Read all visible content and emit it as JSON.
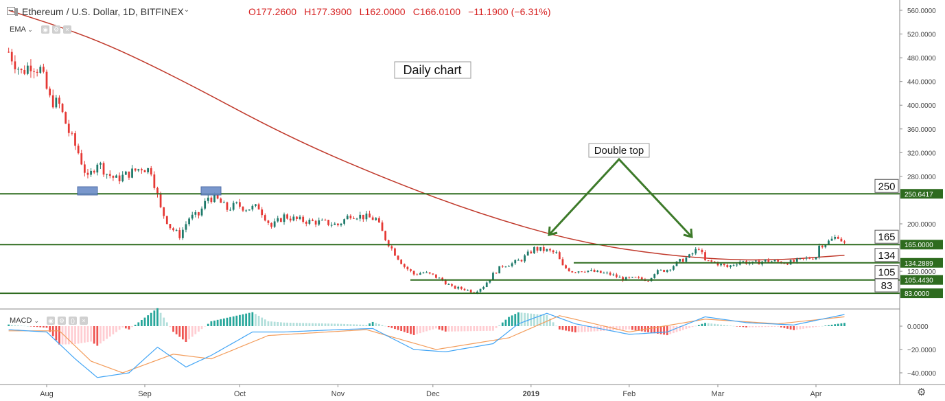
{
  "header": {
    "title": "Ethereum / U.S. Dollar, 1D, BITFINEX",
    "open": "O177.2600",
    "high": "H177.3900",
    "low": "L162.0000",
    "close": "C166.0100",
    "change": "−11.1900 (−6.31%)"
  },
  "indicators": {
    "ema_label": "EMA",
    "macd_label": "MACD"
  },
  "colors": {
    "up": "#1e7a6a",
    "down": "#e53935",
    "ema": "#c0392b",
    "levels": "#2e6b1f",
    "macd_line": "#42a5f5",
    "signal_line": "#f39c5a",
    "hist_pos_strong": "#26a69a",
    "hist_pos_weak": "#b2dfdb",
    "hist_neg_strong": "#ef5350",
    "hist_neg_weak": "#ffcdd2"
  },
  "chart_data": {
    "type": "candlestick",
    "title": "",
    "xlabel": "",
    "ylabel": "",
    "ylim": [
      75,
      568
    ],
    "x_ticks": [
      "Aug",
      "Sep",
      "Oct",
      "Nov",
      "Dec",
      "2019",
      "Feb",
      "Mar",
      "Apr"
    ],
    "y_ticks": [
      "560.0000",
      "520.0000",
      "480.0000",
      "440.0000",
      "400.0000",
      "360.0000",
      "320.0000",
      "280.0000",
      "200.0000",
      "120.0000"
    ],
    "grid": false,
    "annotations": {
      "daily_chart": "Daily chart",
      "double_top": "Double top"
    },
    "levels": [
      {
        "label": "250",
        "price_label": "250.6417",
        "value": 250.64
      },
      {
        "label": "165",
        "price_label": "165.0000",
        "value": 165.0
      },
      {
        "label": "134",
        "price_label": "134.2889",
        "value": 134.29
      },
      {
        "label": "105",
        "price_label": "105.4430",
        "value": 105.44
      },
      {
        "label": "83",
        "price_label": "83.0000",
        "value": 83.0
      }
    ],
    "close_series": [
      {
        "date": "2018-07-20",
        "close": 490
      },
      {
        "date": "2018-07-24",
        "close": 455
      },
      {
        "date": "2018-07-27",
        "close": 470
      },
      {
        "date": "2018-07-30",
        "close": 460
      },
      {
        "date": "2018-08-02",
        "close": 410
      },
      {
        "date": "2018-08-05",
        "close": 400
      },
      {
        "date": "2018-08-08",
        "close": 355
      },
      {
        "date": "2018-08-11",
        "close": 320
      },
      {
        "date": "2018-08-14",
        "close": 275
      },
      {
        "date": "2018-08-17",
        "close": 305
      },
      {
        "date": "2018-08-20",
        "close": 285
      },
      {
        "date": "2018-08-23",
        "close": 275
      },
      {
        "date": "2018-08-27",
        "close": 285
      },
      {
        "date": "2018-08-31",
        "close": 295
      },
      {
        "date": "2018-09-03",
        "close": 290
      },
      {
        "date": "2018-09-06",
        "close": 225
      },
      {
        "date": "2018-09-09",
        "close": 195
      },
      {
        "date": "2018-09-12",
        "close": 180
      },
      {
        "date": "2018-09-15",
        "close": 210
      },
      {
        "date": "2018-09-18",
        "close": 215
      },
      {
        "date": "2018-09-21",
        "close": 245
      },
      {
        "date": "2018-09-24",
        "close": 240
      },
      {
        "date": "2018-09-27",
        "close": 225
      },
      {
        "date": "2018-09-30",
        "close": 232
      },
      {
        "date": "2018-10-03",
        "close": 226
      },
      {
        "date": "2018-10-07",
        "close": 228
      },
      {
        "date": "2018-10-11",
        "close": 195
      },
      {
        "date": "2018-10-15",
        "close": 213
      },
      {
        "date": "2018-10-19",
        "close": 207
      },
      {
        "date": "2018-10-23",
        "close": 204
      },
      {
        "date": "2018-10-28",
        "close": 202
      },
      {
        "date": "2018-11-01",
        "close": 198
      },
      {
        "date": "2018-11-05",
        "close": 216
      },
      {
        "date": "2018-11-09",
        "close": 212
      },
      {
        "date": "2018-11-13",
        "close": 208
      },
      {
        "date": "2018-11-16",
        "close": 175
      },
      {
        "date": "2018-11-19",
        "close": 150
      },
      {
        "date": "2018-11-22",
        "close": 128
      },
      {
        "date": "2018-11-25",
        "close": 115
      },
      {
        "date": "2018-11-28",
        "close": 118
      },
      {
        "date": "2018-12-01",
        "close": 113
      },
      {
        "date": "2018-12-04",
        "close": 105
      },
      {
        "date": "2018-12-07",
        "close": 93
      },
      {
        "date": "2018-12-11",
        "close": 90
      },
      {
        "date": "2018-12-14",
        "close": 85
      },
      {
        "date": "2018-12-17",
        "close": 95
      },
      {
        "date": "2018-12-20",
        "close": 115
      },
      {
        "date": "2018-12-23",
        "close": 130
      },
      {
        "date": "2018-12-26",
        "close": 133
      },
      {
        "date": "2018-12-29",
        "close": 140
      },
      {
        "date": "2019-01-02",
        "close": 158
      },
      {
        "date": "2019-01-06",
        "close": 155
      },
      {
        "date": "2019-01-09",
        "close": 150
      },
      {
        "date": "2019-01-11",
        "close": 128
      },
      {
        "date": "2019-01-14",
        "close": 120
      },
      {
        "date": "2019-01-18",
        "close": 122
      },
      {
        "date": "2019-01-22",
        "close": 118
      },
      {
        "date": "2019-01-26",
        "close": 115
      },
      {
        "date": "2019-01-30",
        "close": 107
      },
      {
        "date": "2019-02-03",
        "close": 108
      },
      {
        "date": "2019-02-07",
        "close": 106
      },
      {
        "date": "2019-02-09",
        "close": 118
      },
      {
        "date": "2019-02-13",
        "close": 123
      },
      {
        "date": "2019-02-17",
        "close": 137
      },
      {
        "date": "2019-02-20",
        "close": 145
      },
      {
        "date": "2019-02-23",
        "close": 160
      },
      {
        "date": "2019-02-25",
        "close": 137
      },
      {
        "date": "2019-02-28",
        "close": 135
      },
      {
        "date": "2019-03-04",
        "close": 127
      },
      {
        "date": "2019-03-08",
        "close": 137
      },
      {
        "date": "2019-03-12",
        "close": 133
      },
      {
        "date": "2019-03-16",
        "close": 138
      },
      {
        "date": "2019-03-20",
        "close": 136
      },
      {
        "date": "2019-03-24",
        "close": 135
      },
      {
        "date": "2019-03-28",
        "close": 140
      },
      {
        "date": "2019-04-01",
        "close": 145
      },
      {
        "date": "2019-04-02",
        "close": 163
      },
      {
        "date": "2019-04-05",
        "close": 170
      },
      {
        "date": "2019-04-08",
        "close": 180
      },
      {
        "date": "2019-04-10",
        "close": 166
      }
    ],
    "ema": [
      {
        "date": "2018-07-20",
        "value": 560
      },
      {
        "date": "2018-08-15",
        "value": 515
      },
      {
        "date": "2018-09-10",
        "value": 450
      },
      {
        "date": "2018-10-15",
        "value": 350
      },
      {
        "date": "2018-11-15",
        "value": 278
      },
      {
        "date": "2018-12-15",
        "value": 218
      },
      {
        "date": "2019-01-15",
        "value": 170
      },
      {
        "date": "2019-02-15",
        "value": 145
      },
      {
        "date": "2019-03-15",
        "value": 137
      },
      {
        "date": "2019-04-10",
        "value": 147
      }
    ],
    "macd": {
      "y_ticks": [
        "0.0000",
        "−20.0000",
        "−40.0000"
      ],
      "ylim": [
        -48,
        14
      ],
      "macd_line": [
        {
          "date": "2018-07-20",
          "value": -3
        },
        {
          "date": "2018-08-01",
          "value": -5
        },
        {
          "date": "2018-08-10",
          "value": -28
        },
        {
          "date": "2018-08-17",
          "value": -44
        },
        {
          "date": "2018-08-27",
          "value": -40
        },
        {
          "date": "2018-09-05",
          "value": -18
        },
        {
          "date": "2018-09-14",
          "value": -35
        },
        {
          "date": "2018-09-22",
          "value": -25
        },
        {
          "date": "2018-10-05",
          "value": -5
        },
        {
          "date": "2018-10-15",
          "value": -5
        },
        {
          "date": "2018-11-01",
          "value": -3
        },
        {
          "date": "2018-11-12",
          "value": -2
        },
        {
          "date": "2018-11-25",
          "value": -20
        },
        {
          "date": "2018-12-05",
          "value": -22
        },
        {
          "date": "2018-12-20",
          "value": -15
        },
        {
          "date": "2018-12-28",
          "value": 2
        },
        {
          "date": "2019-01-06",
          "value": 11
        },
        {
          "date": "2019-01-15",
          "value": 2
        },
        {
          "date": "2019-02-01",
          "value": -7
        },
        {
          "date": "2019-02-13",
          "value": -5
        },
        {
          "date": "2019-02-25",
          "value": 8
        },
        {
          "date": "2019-03-10",
          "value": 3
        },
        {
          "date": "2019-03-25",
          "value": 1
        },
        {
          "date": "2019-04-10",
          "value": 10
        }
      ],
      "signal_line": [
        {
          "date": "2018-07-20",
          "value": -4
        },
        {
          "date": "2018-08-05",
          "value": -4
        },
        {
          "date": "2018-08-15",
          "value": -30
        },
        {
          "date": "2018-08-25",
          "value": -40
        },
        {
          "date": "2018-09-10",
          "value": -24
        },
        {
          "date": "2018-09-22",
          "value": -28
        },
        {
          "date": "2018-10-10",
          "value": -8
        },
        {
          "date": "2018-11-10",
          "value": -3
        },
        {
          "date": "2018-12-02",
          "value": -20
        },
        {
          "date": "2018-12-25",
          "value": -10
        },
        {
          "date": "2019-01-10",
          "value": 9
        },
        {
          "date": "2019-02-01",
          "value": -5
        },
        {
          "date": "2019-02-25",
          "value": 6
        },
        {
          "date": "2019-03-20",
          "value": 2
        },
        {
          "date": "2019-04-10",
          "value": 8
        }
      ]
    }
  }
}
